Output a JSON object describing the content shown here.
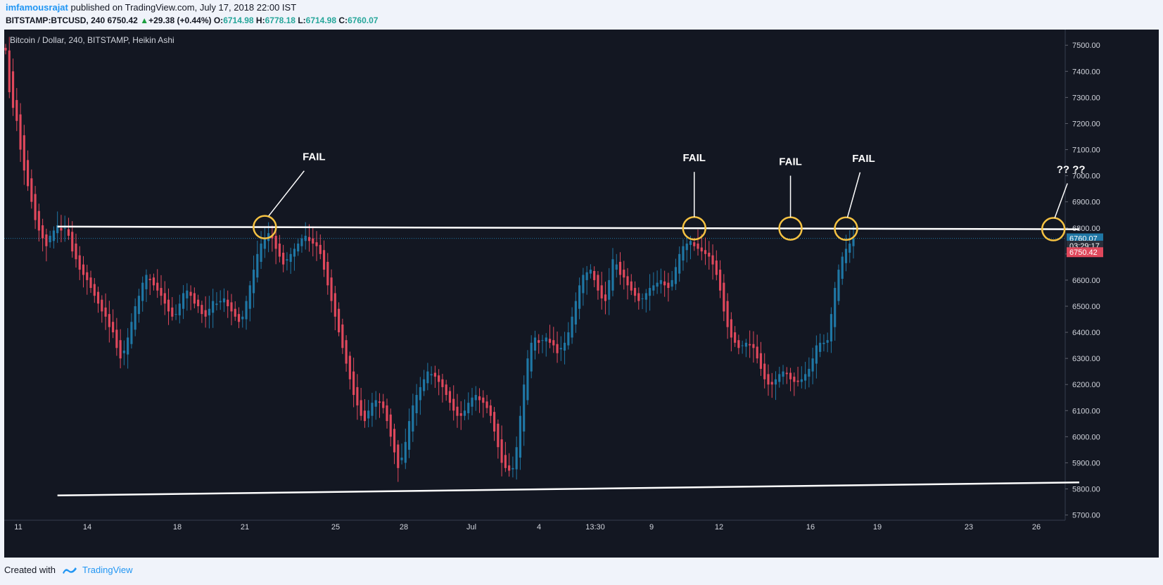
{
  "header": {
    "author": "imfamousrajat",
    "published": "published on TradingView.com, July 17, 2018 22:00 IST",
    "symbol": "BITSTAMP:BTCUSD, 240",
    "last": "6750.42",
    "change": "+29.38 (+0.44%)",
    "o_label": "O:",
    "o_value": "6714.98",
    "h_label": "H:",
    "h_value": "6778.18",
    "l_label": "L:",
    "l_value": "6714.98",
    "c_label": "C:",
    "c_value": "6760.07"
  },
  "footer": {
    "created_with": "Created with",
    "brand": "TradingView"
  },
  "colors": {
    "background": "#131722",
    "up": "#1f77a5",
    "down": "#e0485c",
    "trendline": "#ffffff",
    "circle": "#f5c242",
    "axis_text": "#d1d4dc",
    "price_tag_blue": "#1f77a5",
    "price_tag_red": "#e0485c"
  },
  "chart_data": {
    "type": "candlestick",
    "title": "Bitcoin / Dollar, 240, BITSTAMP, Heikin Ashi",
    "ylim": [
      5680,
      7560
    ],
    "y_ticks": [
      "7500.00",
      "7400.00",
      "7300.00",
      "7200.00",
      "7100.00",
      "7000.00",
      "6900.00",
      "6800.00",
      "6700.00",
      "6600.00",
      "6500.00",
      "6400.00",
      "6300.00",
      "6200.00",
      "6100.00",
      "6000.00",
      "5900.00",
      "5800.00",
      "5700.00"
    ],
    "x_ticks": [
      "11",
      "14",
      "18",
      "21",
      "25",
      "28",
      "Jul",
      "4",
      "13:30",
      "9",
      "12",
      "16",
      "19",
      "23",
      "26"
    ],
    "price_tags": [
      {
        "label": "6760.07",
        "value": 6760.07,
        "color": "blue"
      },
      {
        "label": "03:29:17",
        "value": 6732,
        "color": "dark"
      },
      {
        "label": "6750.42",
        "value": 6707,
        "color": "red"
      }
    ],
    "close_series": [
      7480,
      7320,
      7260,
      7210,
      7100,
      7020,
      6960,
      6900,
      6830,
      6790,
      6760,
      6730,
      6770,
      6790,
      6810,
      6790,
      6800,
      6770,
      6710,
      6680,
      6640,
      6620,
      6600,
      6570,
      6540,
      6510,
      6480,
      6460,
      6420,
      6400,
      6340,
      6300,
      6330,
      6380,
      6440,
      6500,
      6540,
      6590,
      6620,
      6600,
      6580,
      6560,
      6540,
      6510,
      6480,
      6460,
      6470,
      6510,
      6550,
      6560,
      6540,
      6510,
      6500,
      6470,
      6460,
      6490,
      6520,
      6510,
      6520,
      6530,
      6500,
      6480,
      6460,
      6440,
      6460,
      6520,
      6580,
      6640,
      6700,
      6740,
      6760,
      6780,
      6760,
      6720,
      6690,
      6660,
      6680,
      6700,
      6720,
      6740,
      6760,
      6770,
      6750,
      6740,
      6730,
      6700,
      6640,
      6580,
      6520,
      6460,
      6400,
      6340,
      6280,
      6220,
      6160,
      6120,
      6080,
      6060,
      6100,
      6130,
      6140,
      6130,
      6110,
      6060,
      6000,
      5940,
      5880,
      5920,
      5980,
      6060,
      6120,
      6160,
      6190,
      6220,
      6250,
      6240,
      6230,
      6210,
      6190,
      6160,
      6130,
      6100,
      6080,
      6080,
      6100,
      6130,
      6150,
      6160,
      6140,
      6130,
      6110,
      6080,
      6020,
      5960,
      5900,
      5880,
      5870,
      5880,
      5960,
      6080,
      6200,
      6300,
      6360,
      6380,
      6360,
      6370,
      6380,
      6360,
      6350,
      6320,
      6340,
      6360,
      6400,
      6460,
      6520,
      6580,
      6620,
      6630,
      6640,
      6600,
      6560,
      6530,
      6520,
      6600,
      6680,
      6660,
      6620,
      6610,
      6580,
      6560,
      6540,
      6520,
      6530,
      6550,
      6570,
      6580,
      6590,
      6600,
      6580,
      6570,
      6600,
      6650,
      6700,
      6730,
      6740,
      6750,
      6730,
      6720,
      6710,
      6700,
      6690,
      6660,
      6620,
      6560,
      6480,
      6420,
      6380,
      6360,
      6340,
      6350,
      6360,
      6350,
      6340,
      6300,
      6260,
      6220,
      6200,
      6200,
      6220,
      6240,
      6250,
      6240,
      6220,
      6210,
      6210,
      6220,
      6240,
      6260,
      6300,
      6350,
      6360,
      6360,
      6370,
      6470,
      6570,
      6640,
      6690,
      6720,
      6740,
      6760
    ],
    "annotations": [
      {
        "text": "FAIL",
        "x_index": 70
      },
      {
        "text": "FAIL",
        "x_index": 186
      },
      {
        "text": "FAIL",
        "x_index": 212
      },
      {
        "text": "FAIL",
        "x_index": 227
      },
      {
        "text": "?? ??",
        "x_index": 283
      }
    ],
    "trendlines": [
      {
        "name": "resistance",
        "start": [
          14,
          6805
        ],
        "end": [
          290,
          6795
        ]
      },
      {
        "name": "support",
        "start": [
          14,
          5775
        ],
        "end": [
          290,
          5825
        ]
      }
    ],
    "grid": false
  }
}
